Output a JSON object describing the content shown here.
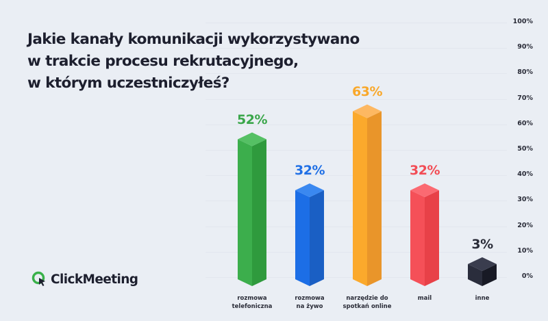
{
  "title": {
    "line1": "Jakie kanały komunikacji wykorzystywano",
    "line2": "w trakcie procesu rekrutacyjnego,",
    "line3": "w którym uczestniczyłeś?"
  },
  "logo": {
    "icon": "clickmeeting-logo-icon",
    "text": "ClickMeeting",
    "color": "#3ab14a"
  },
  "axis": {
    "ticks": [
      "100%",
      "90%",
      "80%",
      "70%",
      "60%",
      "50%",
      "40%",
      "30%",
      "20%",
      "10%",
      "0%"
    ]
  },
  "bars": [
    {
      "label_line1": "rozmowa",
      "label_line2": "telefoniczna",
      "value_label": "52%",
      "value": 52,
      "color_front": "#3cae4c",
      "color_side": "#2f9a3d",
      "color_top": "#55c064",
      "text_color": "#3aa64a"
    },
    {
      "label_line1": "rozmowa",
      "label_line2": "na żywo",
      "value_label": "32%",
      "value": 32,
      "color_front": "#1c6ee6",
      "color_side": "#1a5fc4",
      "color_top": "#3a88f0",
      "text_color": "#1f6fe5"
    },
    {
      "label_line1": "narzędzie do",
      "label_line2": "spotkań online",
      "value_label": "63%",
      "value": 63,
      "color_front": "#fba92c",
      "color_side": "#e9952a",
      "color_top": "#fdb862",
      "text_color": "#f9a82a"
    },
    {
      "label_line1": "mail",
      "label_line2": "",
      "value_label": "32%",
      "value": 32,
      "color_front": "#f55058",
      "color_side": "#e84148",
      "color_top": "#fb6a72",
      "text_color": "#f24c55"
    },
    {
      "label_line1": "inne",
      "label_line2": "",
      "value_label": "3%",
      "value": 3,
      "color_front": "#2a2d3c",
      "color_side": "#181a25",
      "color_top": "#3a3d4e",
      "text_color": "#2a2c38"
    }
  ],
  "chart_data": {
    "type": "bar",
    "title": "Jakie kanały komunikacji wykorzystywano w trakcie procesu rekrutacyjnego, w którym uczestniczyłeś?",
    "categories": [
      "rozmowa telefoniczna",
      "rozmowa na żywo",
      "narzędzie do spotkań online",
      "mail",
      "inne"
    ],
    "values": [
      52,
      32,
      63,
      32,
      3
    ],
    "xlabel": "",
    "ylabel": "",
    "ylim": [
      0,
      100
    ],
    "yticks": [
      "0%",
      "10%",
      "20%",
      "30%",
      "40%",
      "50%",
      "60%",
      "70%",
      "80%",
      "90%",
      "100%"
    ],
    "grid": true,
    "legend": "none"
  }
}
